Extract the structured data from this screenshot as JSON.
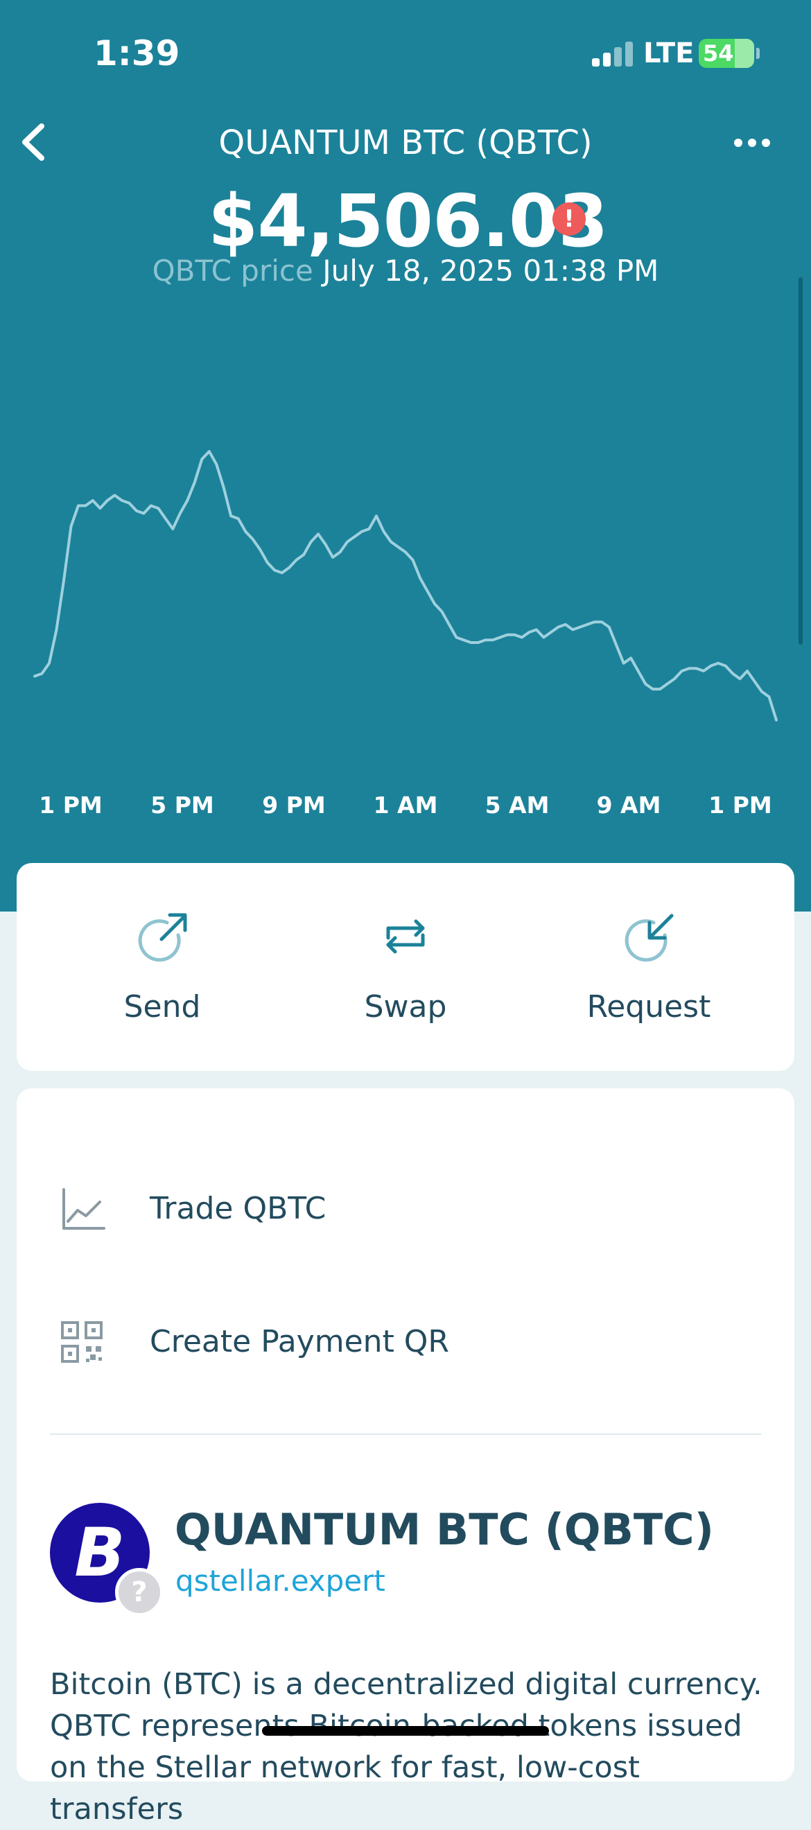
{
  "status_bar": {
    "time": "1:39",
    "network": "LTE",
    "battery": "54"
  },
  "nav": {
    "title": "QUANTUM BTC (QBTC)",
    "back_icon": "chevron-left-icon",
    "more_icon": "more-horizontal-icon"
  },
  "price": {
    "value": "$4,506.03",
    "alert_icon": "!",
    "label": "QBTC price",
    "timestamp": "July 18, 2025 01:38 PM"
  },
  "chart_data": {
    "type": "line",
    "x_ticks": [
      "1 PM",
      "5 PM",
      "9 PM",
      "1 AM",
      "5 AM",
      "9 AM",
      "1 PM"
    ],
    "series": [
      {
        "values": [
          2.0,
          2.1,
          2.5,
          3.8,
          5.7,
          7.8,
          8.6,
          8.6,
          8.8,
          8.5,
          8.8,
          9.0,
          8.8,
          8.7,
          8.4,
          8.3,
          8.6,
          8.5,
          8.1,
          7.7,
          8.3,
          8.8,
          9.5,
          10.4,
          10.7,
          10.2,
          9.3,
          8.2,
          8.1,
          7.6,
          7.3,
          6.9,
          6.4,
          6.1,
          6.0,
          6.2,
          6.5,
          6.7,
          7.2,
          7.5,
          7.1,
          6.6,
          6.8,
          7.2,
          7.4,
          7.6,
          7.7,
          8.2,
          7.6,
          7.2,
          7.0,
          6.8,
          6.5,
          5.8,
          5.3,
          4.8,
          4.5,
          4.0,
          3.5,
          3.4,
          3.3,
          3.3,
          3.4,
          3.4,
          3.5,
          3.6,
          3.6,
          3.5,
          3.7,
          3.8,
          3.5,
          3.7,
          3.9,
          4.0,
          3.8,
          3.9,
          4.0,
          4.1,
          4.1,
          3.9,
          3.2,
          2.5,
          2.7,
          2.2,
          1.7,
          1.5,
          1.5,
          1.7,
          1.9,
          2.2,
          2.3,
          2.3,
          2.2,
          2.4,
          2.5,
          2.4,
          2.1,
          1.9,
          2.2,
          1.8,
          1.4,
          1.2,
          0.3
        ]
      }
    ],
    "line_color": "#9fd0de",
    "grid": false
  },
  "actions": [
    {
      "label": "Send",
      "icon": "send-arrow-icon"
    },
    {
      "label": "Swap",
      "icon": "swap-arrows-icon"
    },
    {
      "label": "Request",
      "icon": "request-arrow-icon"
    }
  ],
  "menu": [
    {
      "label": "Trade QBTC",
      "icon": "chart-line-icon"
    },
    {
      "label": "Create Payment QR",
      "icon": "qr-code-icon"
    }
  ],
  "asset": {
    "name": "QUANTUM BTC (QBTC)",
    "domain": "qstellar.expert",
    "logo_glyph": "B",
    "badge_glyph": "?",
    "description": "Bitcoin (BTC) is a decentralized digital currency. QBTC represents Bitcoin-backed tokens issued on the Stellar network for fast, low-cost transfers"
  },
  "colors": {
    "header": "#1b8299",
    "text_dark": "#234b5e",
    "link": "#1ea4d8",
    "alert": "#ef5a5a"
  }
}
